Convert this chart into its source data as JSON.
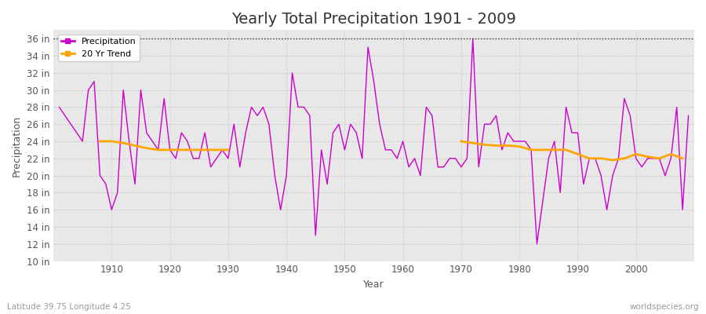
{
  "title": "Yearly Total Precipitation 1901 - 2009",
  "xlabel": "Year",
  "ylabel": "Precipitation",
  "lat_lon_label": "Latitude 39.75 Longitude 4.25",
  "source_label": "worldspecies.org",
  "fig_bg_color": "#ffffff",
  "plot_bg_color": "#e8e8e8",
  "years": [
    1901,
    1902,
    1903,
    1904,
    1905,
    1906,
    1907,
    1908,
    1909,
    1910,
    1911,
    1912,
    1913,
    1914,
    1915,
    1916,
    1917,
    1918,
    1919,
    1920,
    1921,
    1922,
    1923,
    1924,
    1925,
    1926,
    1927,
    1928,
    1929,
    1930,
    1931,
    1932,
    1933,
    1934,
    1935,
    1936,
    1937,
    1938,
    1939,
    1940,
    1941,
    1942,
    1943,
    1944,
    1945,
    1946,
    1947,
    1948,
    1949,
    1950,
    1951,
    1952,
    1953,
    1954,
    1955,
    1956,
    1957,
    1958,
    1959,
    1960,
    1961,
    1962,
    1963,
    1964,
    1965,
    1966,
    1967,
    1968,
    1969,
    1970,
    1971,
    1972,
    1973,
    1974,
    1975,
    1976,
    1977,
    1978,
    1979,
    1980,
    1981,
    1982,
    1983,
    1984,
    1985,
    1986,
    1987,
    1988,
    1989,
    1990,
    1991,
    1992,
    1993,
    1994,
    1995,
    1996,
    1997,
    1998,
    1999,
    2000,
    2001,
    2002,
    2003,
    2004,
    2005,
    2006,
    2007,
    2008,
    2009
  ],
  "precip": [
    28,
    27,
    26,
    25,
    24,
    30,
    31,
    20,
    19,
    16,
    18,
    30,
    24,
    19,
    30,
    25,
    24,
    23,
    29,
    23,
    22,
    25,
    24,
    22,
    22,
    25,
    21,
    22,
    23,
    22,
    26,
    21,
    25,
    28,
    27,
    28,
    26,
    20,
    16,
    20,
    32,
    28,
    28,
    27,
    13,
    23,
    19,
    25,
    26,
    23,
    26,
    25,
    22,
    35,
    31,
    26,
    23,
    23,
    22,
    24,
    21,
    22,
    20,
    28,
    27,
    21,
    21,
    22,
    22,
    21,
    22,
    36,
    21,
    26,
    26,
    27,
    23,
    25,
    24,
    24,
    24,
    23,
    12,
    17,
    22,
    24,
    18,
    28,
    25,
    25,
    19,
    22,
    22,
    20,
    16,
    20,
    22,
    29,
    27,
    22,
    21,
    22,
    22,
    22,
    20,
    22,
    28,
    16,
    27
  ],
  "trend_seg1_years": [
    1908,
    1910,
    1912,
    1914,
    1916,
    1918,
    1920,
    1922,
    1924,
    1926,
    1928,
    1930
  ],
  "trend_seg1_values": [
    24.0,
    24.0,
    23.8,
    23.5,
    23.2,
    23.0,
    23.0,
    23.0,
    23.0,
    23.0,
    23.0,
    23.0
  ],
  "trend_seg2_years": [
    1970,
    1972,
    1974,
    1976,
    1978,
    1980,
    1982,
    1984,
    1986,
    1988,
    1990,
    1992,
    1994,
    1996,
    1998,
    2000,
    2002,
    2004,
    2006,
    2008
  ],
  "trend_seg2_values": [
    24.0,
    23.8,
    23.6,
    23.5,
    23.5,
    23.4,
    23.0,
    23.0,
    23.0,
    23.0,
    22.5,
    22.0,
    22.0,
    21.8,
    22.0,
    22.5,
    22.2,
    22.0,
    22.5,
    22.0
  ],
  "precip_color": "#cc00cc",
  "trend_color": "#ffa500",
  "ylim": [
    10,
    37
  ],
  "yticks": [
    10,
    12,
    14,
    16,
    18,
    20,
    22,
    24,
    26,
    28,
    30,
    32,
    34,
    36
  ],
  "title_fontsize": 14,
  "axis_label_fontsize": 9,
  "tick_fontsize": 8.5
}
